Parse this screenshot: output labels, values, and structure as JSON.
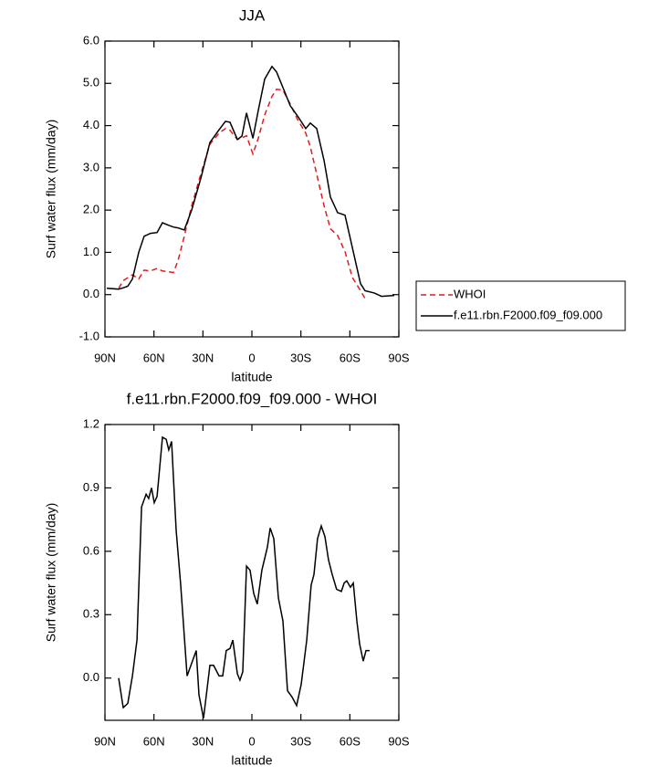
{
  "chart_data": [
    {
      "type": "line",
      "title": "JJA",
      "x_label": "latitude",
      "y_label": "Surf water flux (mm/day)",
      "x": [
        88.9,
        81.6,
        78.8,
        76.0,
        73.2,
        69.3,
        66.0,
        62.1,
        58.1,
        54.8,
        50.9,
        48.1,
        45.3,
        41.4,
        36.9,
        31.3,
        25.7,
        20.1,
        16.2,
        13.4,
        8.9,
        6.1,
        3.3,
        -0.6,
        -3.9,
        -7.8,
        -12.3,
        -15.1,
        -19.0,
        -23.5,
        -27.9,
        -33.0,
        -35.8,
        -39.7,
        -44.2,
        -48.1,
        -52.5,
        -57.0,
        -61.5,
        -66.5,
        -69.3,
        -74.9,
        -79.4,
        -87.2
      ],
      "series": [
        {
          "name": "WHOI",
          "color": "#e41a1c",
          "dash": "dashed",
          "values": [
            null,
            0.15,
            0.33,
            0.4,
            0.47,
            0.37,
            0.58,
            0.56,
            0.62,
            0.56,
            0.54,
            0.52,
            0.8,
            1.38,
            2.1,
            2.85,
            3.56,
            3.82,
            3.93,
            3.89,
            3.67,
            3.71,
            3.76,
            3.33,
            3.7,
            4.25,
            4.69,
            4.86,
            4.84,
            4.51,
            4.15,
            3.82,
            3.5,
            2.85,
            2.1,
            1.56,
            1.4,
            1.02,
            0.41,
            0.09,
            -0.09,
            null,
            null,
            null
          ]
        },
        {
          "name": "f.e11.rbn.F2000.f09_f09.000",
          "color": "#000000",
          "dash": "solid",
          "values": [
            0.15,
            0.13,
            0.16,
            0.2,
            0.37,
            1.0,
            1.38,
            1.45,
            1.47,
            1.7,
            1.64,
            1.6,
            1.58,
            1.53,
            2.0,
            2.75,
            3.6,
            3.9,
            4.1,
            4.08,
            3.67,
            3.75,
            4.3,
            3.7,
            4.36,
            5.1,
            5.4,
            5.27,
            4.9,
            4.47,
            4.23,
            3.93,
            4.06,
            3.93,
            3.17,
            2.31,
            1.94,
            1.88,
            1.12,
            0.26,
            0.09,
            0.04,
            -0.04,
            -0.02
          ]
        }
      ],
      "xlim": [
        90,
        -90
      ],
      "xticks": [
        {
          "value": 90,
          "label": "90N"
        },
        {
          "value": 60,
          "label": "60N"
        },
        {
          "value": 30,
          "label": "30N"
        },
        0,
        {
          "value": -30,
          "label": "30S"
        },
        {
          "value": -60,
          "label": "60S"
        },
        {
          "value": -90,
          "label": "90S"
        }
      ],
      "ylim": [
        -1,
        6
      ],
      "yticks": [
        {
          "value": -1,
          "label": "-1.0"
        },
        {
          "value": 0,
          "label": "0.0"
        },
        {
          "value": 1,
          "label": "1.0"
        },
        {
          "value": 2,
          "label": "2.0"
        },
        {
          "value": 3,
          "label": "3.0"
        },
        {
          "value": 4,
          "label": "4.0"
        },
        {
          "value": 5,
          "label": "5.0"
        },
        {
          "value": 6,
          "label": "6.0"
        }
      ],
      "legend": true
    },
    {
      "type": "line",
      "title": "f.e11.rbn.F2000.f09_f09.000 - WHOI",
      "x_label": "latitude",
      "y_label": "Surf water flux (mm/day)",
      "x": [
        81.6,
        78.8,
        76.0,
        73.2,
        70.4,
        67.6,
        64.8,
        63.2,
        61.5,
        59.8,
        58.1,
        54.8,
        52.5,
        50.9,
        49.2,
        46.4,
        43.6,
        39.7,
        36.9,
        34.1,
        32.4,
        29.6,
        25.7,
        23.5,
        20.1,
        17.9,
        15.7,
        13.4,
        11.7,
        8.9,
        7.3,
        5.6,
        3.3,
        1.1,
        -1.1,
        -3.3,
        -6.1,
        -9.5,
        -11.2,
        -13.4,
        -16.2,
        -19.0,
        -21.8,
        -24.6,
        -27.4,
        -30.2,
        -33.6,
        -36.3,
        -38.0,
        -40.2,
        -42.5,
        -44.7,
        -46.9,
        -49.2,
        -51.9,
        -54.8,
        -56.5,
        -58.1,
        -60.4,
        -62.1,
        -64.3,
        -66.0,
        -68.2,
        -69.9,
        -72.1
      ],
      "series": [
        {
          "name": null,
          "color": "#000000",
          "dash": "solid",
          "values": [
            0.0,
            -0.14,
            -0.12,
            0.01,
            0.18,
            0.81,
            0.87,
            0.85,
            0.9,
            0.83,
            0.86,
            1.14,
            1.13,
            1.08,
            1.12,
            0.7,
            0.44,
            0.01,
            0.07,
            0.13,
            -0.08,
            -0.19,
            0.06,
            0.06,
            0.01,
            0.01,
            0.13,
            0.14,
            0.18,
            0.02,
            -0.01,
            0.03,
            0.53,
            0.51,
            0.4,
            0.35,
            0.51,
            0.62,
            0.71,
            0.66,
            0.38,
            0.27,
            -0.06,
            -0.09,
            -0.13,
            -0.03,
            0.18,
            0.44,
            0.49,
            0.66,
            0.72,
            0.67,
            0.56,
            0.49,
            0.42,
            0.41,
            0.45,
            0.46,
            0.43,
            0.45,
            0.27,
            0.16,
            0.08,
            0.13,
            0.13
          ]
        }
      ],
      "xlim": [
        90,
        -90
      ],
      "xticks": [
        {
          "value": 90,
          "label": "90N"
        },
        {
          "value": 60,
          "label": "60N"
        },
        {
          "value": 30,
          "label": "30N"
        },
        0,
        {
          "value": -30,
          "label": "30S"
        },
        {
          "value": -60,
          "label": "60S"
        },
        {
          "value": -90,
          "label": "90S"
        }
      ],
      "ylim": [
        -0.2,
        1.2
      ],
      "yticks": [
        {
          "value": 0,
          "label": "0.0"
        },
        0.3,
        0.6,
        0.9,
        1.2
      ],
      "legend": false
    }
  ]
}
